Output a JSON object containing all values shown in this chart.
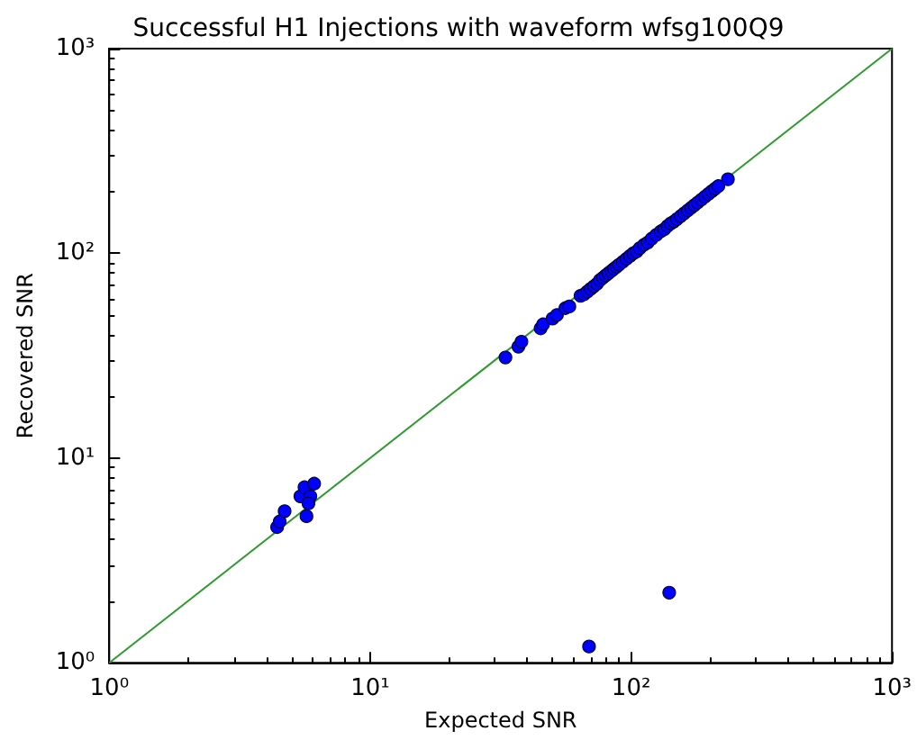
{
  "chart_data": {
    "type": "scatter",
    "title": "Successful H1 Injections with waveform wfsg100Q9",
    "xlabel": "Expected SNR",
    "ylabel": "Recovered SNR",
    "log": "xy",
    "grid": false,
    "marker": "circle",
    "xlim": [
      1,
      1000
    ],
    "ylim": [
      1,
      1000
    ],
    "xticks": [
      {
        "value": 1,
        "label": "10⁰"
      },
      {
        "value": 10,
        "label": "10¹"
      },
      {
        "value": 100,
        "label": "10²"
      },
      {
        "value": 1000,
        "label": "10³"
      }
    ],
    "yticks": [
      {
        "value": 1,
        "label": "10⁰"
      },
      {
        "value": 10,
        "label": "10¹"
      },
      {
        "value": 100,
        "label": "10²"
      },
      {
        "value": 1000,
        "label": "10³"
      }
    ],
    "series": [
      {
        "type": "line",
        "color": "#2e9a2e",
        "marker": "none",
        "x": [
          1,
          1000
        ],
        "values": [
          1,
          1000
        ]
      },
      {
        "color": "#0000ff",
        "x": [
          4.4,
          4.5,
          4.7,
          5.4,
          5.6,
          5.7,
          5.8,
          5.9,
          6.1,
          5.8,
          69,
          140,
          33,
          37,
          38,
          45,
          46,
          50,
          52,
          56,
          58,
          64,
          66,
          68,
          70,
          72,
          74,
          76,
          78,
          80,
          82,
          84,
          86,
          88,
          90,
          93,
          96,
          99,
          102,
          105,
          108,
          112,
          116,
          120,
          125,
          130,
          134,
          138,
          142,
          146,
          150,
          155,
          160,
          165,
          170,
          175,
          180,
          186,
          192,
          198,
          204,
          210,
          216,
          235
        ],
        "values": [
          4.6,
          4.9,
          5.5,
          6.5,
          7.2,
          5.2,
          6.1,
          6.5,
          7.5,
          6.0,
          1.2,
          2.2,
          31,
          35,
          37,
          43,
          45,
          48,
          50,
          54,
          55,
          62,
          63,
          65,
          67,
          69,
          71,
          74,
          76,
          78,
          80,
          82,
          84,
          86,
          88,
          91,
          94,
          97,
          100,
          102,
          106,
          110,
          113,
          118,
          123,
          128,
          131,
          136,
          140,
          143,
          147,
          152,
          157,
          162,
          167,
          172,
          177,
          183,
          189,
          195,
          201,
          207,
          213,
          230
        ]
      }
    ]
  }
}
